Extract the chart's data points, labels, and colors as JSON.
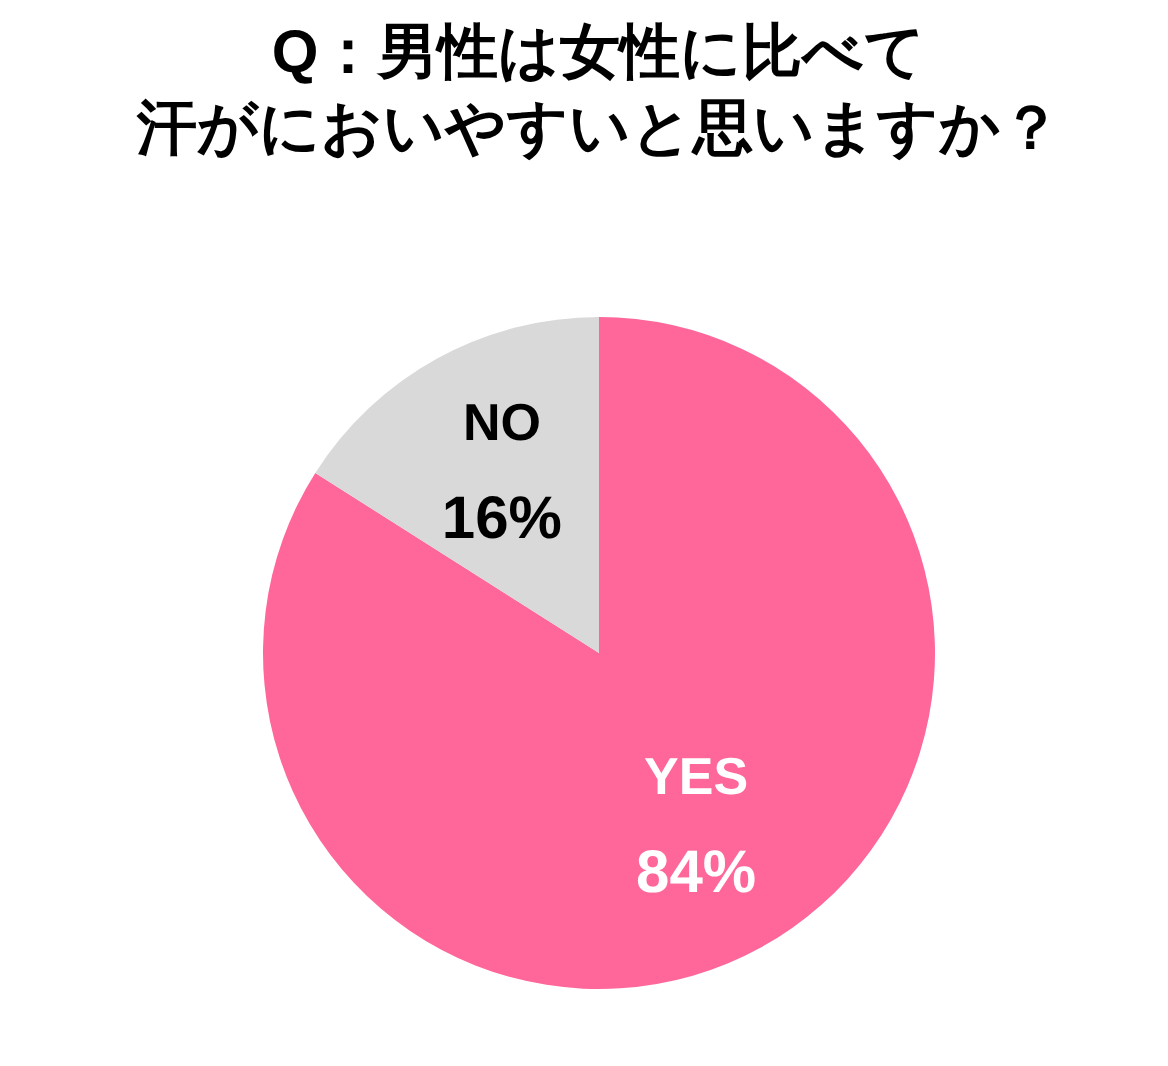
{
  "chart_data": {
    "type": "pie",
    "title": "Q：男性は女性に比べて",
    "subtitle": "汗がにおいやすいと思いますか？",
    "categories": [
      "YES",
      "NO"
    ],
    "values": [
      84,
      16
    ],
    "colors": [
      "#ff6699",
      "#d9d9d9"
    ],
    "value_labels": [
      "84%",
      "16%"
    ],
    "legend": false
  }
}
